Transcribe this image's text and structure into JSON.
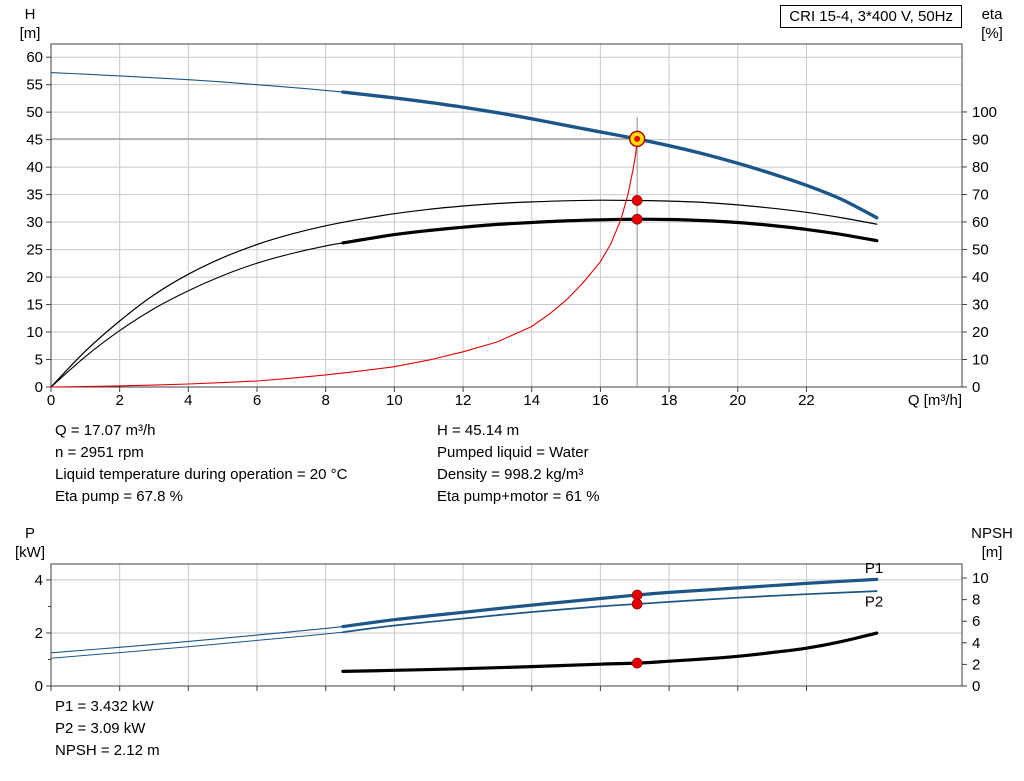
{
  "title": "CRI 15-4, 3*400 V, 50Hz",
  "axes": {
    "h_symbol": "H",
    "h_unit": "[m]",
    "eta_symbol": "eta",
    "eta_unit": "[%]",
    "p_symbol": "P",
    "p_unit": "[kW]",
    "npsh_symbol": "NPSH",
    "npsh_unit": "[m]",
    "q_label": "Q [m³/h]"
  },
  "info": {
    "left": [
      "Q = 17.07 m³/h",
      "n = 2951 rpm",
      "Liquid temperature during operation = 20 °C",
      "Eta pump = 67.8 %"
    ],
    "right": [
      "H = 45.14 m",
      "Pumped liquid = Water",
      "Density = 998.2 kg/m³",
      "Eta pump+motor = 61 %"
    ],
    "bottom": [
      "P1 = 3.432 kW",
      "P2 = 3.09 kW",
      "NPSH = 2.12 m"
    ]
  },
  "colors": {
    "curve_blue": "#1c5688",
    "curve_red": "#e60000",
    "curve_black": "#000000",
    "grid": "#c9c9c9",
    "guide": "#8c8c8c",
    "frame": "#404040",
    "duty_fill": "#ffdd00",
    "dot_red": "#e60000"
  },
  "chart_data": [
    {
      "type": "line",
      "name": "qh-eta-chart",
      "title": "CRI 15-4, 3*400 V, 50Hz",
      "x": {
        "label": "Q [m³/h]",
        "min": 0,
        "max": 26.53,
        "ticks": [
          0,
          2,
          4,
          6,
          8,
          10,
          12,
          14,
          16,
          18,
          20,
          22
        ]
      },
      "y_left": {
        "label": "H [m]",
        "min": 0,
        "max": 62.4,
        "ticks": [
          0,
          5,
          10,
          15,
          20,
          25,
          30,
          35,
          40,
          45,
          50,
          55,
          60
        ]
      },
      "y_right": {
        "label": "eta [%]",
        "min": 0,
        "max": 124.7,
        "ticks": [
          0,
          10,
          20,
          30,
          40,
          50,
          60,
          70,
          80,
          90,
          100
        ]
      },
      "guides": {
        "q": 17.07,
        "h": 45.14
      },
      "series": [
        {
          "name": "head",
          "axis": "left",
          "color": "#1c5688",
          "thick_from": 8.5,
          "w_thin": 1.1,
          "w_thick": 3.4,
          "smooth": true,
          "points": [
            [
              0,
              57.2
            ],
            [
              1,
              56.9
            ],
            [
              2,
              56.6
            ],
            [
              3,
              56.25
            ],
            [
              4,
              55.9
            ],
            [
              5,
              55.5
            ],
            [
              6,
              55.0
            ],
            [
              7,
              54.5
            ],
            [
              8,
              53.95
            ],
            [
              8.5,
              53.65
            ],
            [
              10,
              52.6
            ],
            [
              11,
              51.8
            ],
            [
              12,
              50.9
            ],
            [
              13,
              49.9
            ],
            [
              14,
              48.8
            ],
            [
              15,
              47.6
            ],
            [
              16,
              46.4
            ],
            [
              17.07,
              45.14
            ],
            [
              18,
              43.9
            ],
            [
              19,
              42.4
            ],
            [
              20,
              40.7
            ],
            [
              21,
              38.8
            ],
            [
              22,
              36.7
            ],
            [
              23,
              34.2
            ],
            [
              24.05,
              30.8
            ]
          ]
        },
        {
          "name": "eta-pump",
          "axis": "right",
          "color": "#000000",
          "w_thin": 1.2,
          "smooth": true,
          "points": [
            [
              0,
              0
            ],
            [
              1,
              13
            ],
            [
              2,
              24
            ],
            [
              3,
              33.5
            ],
            [
              4,
              41
            ],
            [
              5,
              47
            ],
            [
              6,
              51.8
            ],
            [
              7,
              55.6
            ],
            [
              8,
              58.6
            ],
            [
              9,
              61
            ],
            [
              10,
              63
            ],
            [
              11,
              64.6
            ],
            [
              12,
              65.8
            ],
            [
              13,
              66.7
            ],
            [
              14,
              67.3
            ],
            [
              15,
              67.7
            ],
            [
              16,
              67.9
            ],
            [
              17.07,
              67.8
            ],
            [
              18,
              67.6
            ],
            [
              19,
              67.1
            ],
            [
              20,
              66.2
            ],
            [
              21,
              65.0
            ],
            [
              22,
              63.5
            ],
            [
              23,
              61.6
            ],
            [
              24.05,
              59.2
            ]
          ]
        },
        {
          "name": "eta-pump-motor",
          "axis": "right",
          "color": "#000000",
          "thick_from": 8.5,
          "w_thin": 1.1,
          "w_thick": 3.2,
          "smooth": true,
          "points": [
            [
              0,
              0
            ],
            [
              1,
              11
            ],
            [
              2,
              20.5
            ],
            [
              3,
              28.5
            ],
            [
              4,
              35
            ],
            [
              5,
              40.5
            ],
            [
              6,
              45
            ],
            [
              7,
              48.5
            ],
            [
              8,
              51.3
            ],
            [
              8.5,
              52.4
            ],
            [
              10,
              55.4
            ],
            [
              11,
              56.9
            ],
            [
              12,
              58.1
            ],
            [
              13,
              59.1
            ],
            [
              14,
              59.8
            ],
            [
              15,
              60.4
            ],
            [
              16,
              60.8
            ],
            [
              17.07,
              61
            ],
            [
              18,
              60.9
            ],
            [
              19,
              60.5
            ],
            [
              20,
              59.8
            ],
            [
              21,
              58.7
            ],
            [
              22,
              57.3
            ],
            [
              23,
              55.5
            ],
            [
              24.05,
              53.2
            ]
          ]
        },
        {
          "name": "duty-locus",
          "axis": "left",
          "color": "#e60000",
          "w_thin": 1.1,
          "smooth": false,
          "points": [
            [
              0,
              0
            ],
            [
              1,
              0.1
            ],
            [
              2,
              0.2
            ],
            [
              3,
              0.35
            ],
            [
              4,
              0.55
            ],
            [
              5,
              0.8
            ],
            [
              6,
              1.1
            ],
            [
              7,
              1.6
            ],
            [
              8,
              2.2
            ],
            [
              9,
              2.9
            ],
            [
              10,
              3.7
            ],
            [
              11,
              4.9
            ],
            [
              12,
              6.4
            ],
            [
              13,
              8.2
            ],
            [
              14,
              11
            ],
            [
              14.5,
              13.2
            ],
            [
              15,
              15.8
            ],
            [
              15.5,
              19
            ],
            [
              16,
              22.8
            ],
            [
              16.3,
              26
            ],
            [
              16.6,
              30.5
            ],
            [
              16.8,
              35
            ],
            [
              16.95,
              39.5
            ],
            [
              17.03,
              42.5
            ],
            [
              17.07,
              45.14
            ]
          ]
        }
      ],
      "markers": [
        {
          "style": "duty",
          "axis": "left",
          "x": 17.07,
          "y": 45.14
        },
        {
          "style": "dot",
          "axis": "right",
          "x": 17.07,
          "y": 67.8
        },
        {
          "style": "dot",
          "axis": "right",
          "x": 17.07,
          "y": 61
        }
      ]
    },
    {
      "type": "line",
      "name": "power-npsh-chart",
      "x": {
        "label": "",
        "min": 0,
        "max": 26.53,
        "ticks": [
          0,
          2,
          4,
          6,
          8,
          10,
          12,
          14,
          16,
          18,
          20,
          22
        ]
      },
      "y_left": {
        "label": "P [kW]",
        "min": 0,
        "max": 4.6,
        "ticks": [
          0,
          2,
          4
        ],
        "minor": [
          1,
          3
        ]
      },
      "y_right": {
        "label": "NPSH [m]",
        "min": 0,
        "max": 11.3,
        "ticks": [
          0,
          2,
          4,
          6,
          8,
          10
        ]
      },
      "series": [
        {
          "name": "p1",
          "label": "P1",
          "label_at": [
            23.7,
            4.45
          ],
          "axis": "left",
          "color": "#1c5688",
          "thick_from": 8.5,
          "w_thin": 1.1,
          "w_thick": 3.2,
          "smooth": true,
          "points": [
            [
              0,
              1.25
            ],
            [
              2,
              1.46
            ],
            [
              4,
              1.68
            ],
            [
              6,
              1.92
            ],
            [
              8,
              2.17
            ],
            [
              8.5,
              2.24
            ],
            [
              10,
              2.5
            ],
            [
              12,
              2.78
            ],
            [
              14,
              3.05
            ],
            [
              16,
              3.3
            ],
            [
              17.07,
              3.432
            ],
            [
              18,
              3.53
            ],
            [
              20,
              3.7
            ],
            [
              22,
              3.87
            ],
            [
              24.05,
              4.02
            ]
          ]
        },
        {
          "name": "p2",
          "label": "P2",
          "label_at": [
            23.7,
            3.18
          ],
          "axis": "left",
          "color": "#1c5688",
          "thick_from": 8.5,
          "w_thin": 1.0,
          "w_thick": 1.7,
          "smooth": true,
          "points": [
            [
              0,
              1.05
            ],
            [
              2,
              1.26
            ],
            [
              4,
              1.48
            ],
            [
              6,
              1.72
            ],
            [
              8,
              1.96
            ],
            [
              8.5,
              2.03
            ],
            [
              10,
              2.28
            ],
            [
              12,
              2.54
            ],
            [
              14,
              2.79
            ],
            [
              16,
              3.0
            ],
            [
              17.07,
              3.09
            ],
            [
              18,
              3.17
            ],
            [
              20,
              3.33
            ],
            [
              22,
              3.46
            ],
            [
              24.05,
              3.58
            ]
          ]
        },
        {
          "name": "npsh",
          "axis": "right",
          "color": "#000000",
          "w_thin": 3.2,
          "smooth": true,
          "points": [
            [
              8.5,
              1.35
            ],
            [
              10,
              1.45
            ],
            [
              12,
              1.6
            ],
            [
              14,
              1.8
            ],
            [
              16,
              2.02
            ],
            [
              17.07,
              2.12
            ],
            [
              18,
              2.3
            ],
            [
              19,
              2.5
            ],
            [
              20,
              2.75
            ],
            [
              21,
              3.1
            ],
            [
              22,
              3.5
            ],
            [
              23,
              4.1
            ],
            [
              24.05,
              4.9
            ]
          ]
        }
      ],
      "markers": [
        {
          "style": "dot",
          "axis": "left",
          "x": 17.07,
          "y": 3.432
        },
        {
          "style": "dot",
          "axis": "left",
          "x": 17.07,
          "y": 3.09
        },
        {
          "style": "dot",
          "axis": "right",
          "x": 17.07,
          "y": 2.12
        }
      ]
    }
  ]
}
